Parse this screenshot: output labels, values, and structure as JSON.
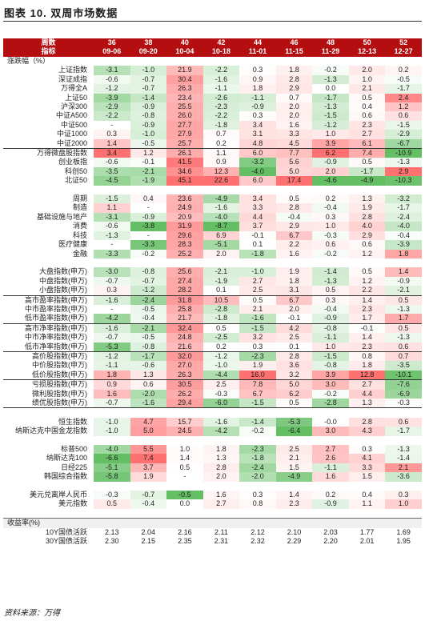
{
  "title": "图表 10. 双周市场数据",
  "source": "资料来源：万得",
  "header": {
    "row1_label": "周数",
    "row2_label": "指标",
    "weeks": [
      "36",
      "38",
      "40",
      "42",
      "44",
      "46",
      "48",
      "50",
      "52"
    ],
    "dates": [
      "09-06",
      "09-20",
      "10-04",
      "10-18",
      "11-01",
      "11-15",
      "11-29",
      "12-13",
      "12-27"
    ]
  },
  "colors": {
    "pos_max": "#f08080",
    "neg_max": "#5dbb63",
    "header_bg": "#b40e10"
  },
  "rows": [
    {
      "label": "涨跌幅（%）",
      "type": "section"
    },
    {
      "label": "上证指数",
      "vals": [
        "-3.1",
        "-1.0",
        "21.9",
        "-2.2",
        "0.3",
        "1.8",
        "-0.2",
        "2.0",
        "0.2"
      ]
    },
    {
      "label": "深证成指",
      "vals": [
        "-0.6",
        "-0.7",
        "30.4",
        "-1.6",
        "0.9",
        "2.8",
        "-1.3",
        "1.0",
        "-0.5"
      ]
    },
    {
      "label": "万得全A",
      "vals": [
        "-1.2",
        "-0.7",
        "26.3",
        "-1.1",
        "1.8",
        "2.9",
        "0.0",
        "2.1",
        "-1.7"
      ]
    },
    {
      "label": "上证50",
      "vals": [
        "-3.9",
        "-1.4",
        "23.4",
        "-2.6",
        "-1.1",
        "0.7",
        "-1.7",
        "0.5",
        "2.4"
      ]
    },
    {
      "label": "沪深300",
      "vals": [
        "-2.9",
        "-0.9",
        "25.5",
        "-2.3",
        "-0.9",
        "2.0",
        "-1.3",
        "0.4",
        "1.2"
      ]
    },
    {
      "label": "中证A500",
      "vals": [
        "-2.2",
        "-0.8",
        "26.0",
        "-2.2",
        "0.3",
        "2.0",
        "-1.5",
        "0.6",
        "0.6"
      ]
    },
    {
      "label": "中证500",
      "vals": [
        "-",
        "-0.9",
        "27.7",
        "-1.8",
        "3.4",
        "1.6",
        "-1.2",
        "2.3",
        "-1.5"
      ]
    },
    {
      "label": "中证1000",
      "vals": [
        "0.3",
        "-1.0",
        "27.9",
        "0.7",
        "3.1",
        "3.3",
        "1.0",
        "2.7",
        "-2.9"
      ]
    },
    {
      "label": "中证2000",
      "vals": [
        "1.4",
        "-0.5",
        "25.7",
        "0.2",
        "4.8",
        "4.5",
        "3.9",
        "6.1",
        "-6.7"
      ]
    },
    {
      "label": "万得微盘股指数",
      "vals": [
        "3.4",
        "1.2",
        "26.1",
        "1.1",
        "6.0",
        "7.7",
        "6.2",
        "7.4",
        "-10.9"
      ],
      "topline": true
    },
    {
      "label": "创业板指",
      "vals": [
        "-0.6",
        "-0.1",
        "41.5",
        "0.9",
        "-3.2",
        "5.6",
        "-0.9",
        "0.5",
        "-1.3"
      ]
    },
    {
      "label": "科创50",
      "vals": [
        "-3.5",
        "-2.1",
        "34.6",
        "12.3",
        "-4.0",
        "5.0",
        "2.0",
        "-1.7",
        "2.9"
      ]
    },
    {
      "label": "北证50",
      "vals": [
        "-4.5",
        "-1.9",
        "45.1",
        "22.6",
        "6.0",
        "17.4",
        "-4.6",
        "-4.9",
        "-10.3"
      ]
    },
    {
      "type": "gap"
    },
    {
      "label": "周期",
      "vals": [
        "-1.5",
        "0.4",
        "23.6",
        "-4.9",
        "3.4",
        "0.5",
        "0.2",
        "1.3",
        "-3.2"
      ]
    },
    {
      "label": "制造",
      "vals": [
        "1.1",
        "-",
        "24.9",
        "-1.6",
        "3.3",
        "2.8",
        "-0.4",
        "1.9",
        "-1.7"
      ]
    },
    {
      "label": "基础设施与地产",
      "vals": [
        "-3.1",
        "-0.9",
        "20.9",
        "-4.0",
        "4.4",
        "-0.4",
        "0.3",
        "2.8",
        "-2.4"
      ]
    },
    {
      "label": "消费",
      "vals": [
        "-0.6",
        "-3.8",
        "31.9",
        "-8.7",
        "3.7",
        "2.9",
        "1.0",
        "4.0",
        "-4.0"
      ]
    },
    {
      "label": "科技",
      "vals": [
        "-1.3",
        "-",
        "29.6",
        "6.9",
        "-0.1",
        "6.7",
        "-0.3",
        "2.9",
        "-0.4"
      ]
    },
    {
      "label": "医疗健康",
      "vals": [
        "-",
        "-3.3",
        "28.3",
        "-5.1",
        "0.1",
        "2.2",
        "0.6",
        "0.6",
        "-3.9"
      ]
    },
    {
      "label": "金融",
      "vals": [
        "-3.3",
        "-0.2",
        "25.2",
        "2.0",
        "-1.8",
        "1.6",
        "-0.2",
        "1.2",
        "1.8"
      ]
    },
    {
      "type": "gap"
    },
    {
      "label": "大盘指数(申万)",
      "vals": [
        "-3.0",
        "-0.8",
        "25.6",
        "-2.1",
        "-1.0",
        "1.9",
        "-1.4",
        "0.5",
        "1.4"
      ]
    },
    {
      "label": "中盘指数(申万)",
      "vals": [
        "-0.7",
        "-0.7",
        "27.4",
        "-1.9",
        "2.7",
        "1.8",
        "-1.3",
        "1.2",
        "-0.9"
      ]
    },
    {
      "label": "小盘指数(申万)",
      "vals": [
        "0.3",
        "-1.2",
        "28.2",
        "0.1",
        "2.5",
        "3.1",
        "0.5",
        "2.2",
        "-2.1"
      ]
    },
    {
      "label": "高市盈率指数(申万)",
      "vals": [
        "-1.6",
        "-2.4",
        "31.8",
        "10.5",
        "0.5",
        "6.7",
        "0.3",
        "1.4",
        "0.5"
      ],
      "topline": true
    },
    {
      "label": "中市盈率指数(申万)",
      "vals": [
        "-",
        "-0.5",
        "25.8",
        "-2.8",
        "2.1",
        "2.0",
        "-0.4",
        "2.3",
        "-1.3"
      ]
    },
    {
      "label": "低市盈率指数(申万)",
      "vals": [
        "-4.2",
        "-0.4",
        "21.7",
        "-1.8",
        "-1.6",
        "-0.1",
        "-0.9",
        "1.7",
        "1.7"
      ]
    },
    {
      "label": "高市净率指数(申万)",
      "vals": [
        "-1.6",
        "-2.1",
        "32.4",
        "0.5",
        "-1.5",
        "4.2",
        "-0.8",
        "-0.1",
        "0.5"
      ],
      "topline": true
    },
    {
      "label": "中市净率指数(申万)",
      "vals": [
        "-0.7",
        "-0.5",
        "24.8",
        "-2.5",
        "3.2",
        "2.5",
        "-1.1",
        "1.4",
        "-1.3"
      ]
    },
    {
      "label": "低市净率指数(申万)",
      "vals": [
        "-5.3",
        "-0.8",
        "21.6",
        "0.2",
        "0.3",
        "0.1",
        "1.0",
        "2.3",
        "0.6"
      ]
    },
    {
      "label": "高价股指数(申万)",
      "vals": [
        "-1.2",
        "-1.7",
        "32.0",
        "-1.2",
        "-2.3",
        "2.8",
        "-1.5",
        "0.8",
        "0.7"
      ],
      "topline": true
    },
    {
      "label": "中价股指数(申万)",
      "vals": [
        "-1.1",
        "-0.6",
        "27.0",
        "-1.0",
        "1.9",
        "3.6",
        "-0.8",
        "1.8",
        "-3.5"
      ]
    },
    {
      "label": "低价股指数(申万)",
      "vals": [
        "1.8",
        "1.3",
        "26.3",
        "-4.4",
        "16.0",
        "3.2",
        "3.9",
        "12.8",
        "-10.1"
      ]
    },
    {
      "label": "亏损股指数(申万)",
      "vals": [
        "0.9",
        "0.6",
        "30.5",
        "2.5",
        "7.8",
        "5.0",
        "3.0",
        "2.7",
        "-7.6"
      ],
      "topline": true
    },
    {
      "label": "微利股指数(申万)",
      "vals": [
        "1.6",
        "-2.0",
        "26.2",
        "-0.3",
        "6.7",
        "6.2",
        "-0.2",
        "4.4",
        "-6.9"
      ]
    },
    {
      "label": "绩优股指数(申万)",
      "vals": [
        "-0.7",
        "-1.6",
        "29.4",
        "-6.0",
        "-1.5",
        "0.5",
        "-2.8",
        "1.3",
        "-0.3"
      ],
      "botline": true
    },
    {
      "type": "gap"
    },
    {
      "label": "恒生指数",
      "vals": [
        "-1.0",
        "4.7",
        "15.7",
        "-1.6",
        "-1.4",
        "-5.3",
        "-0.0",
        "2.8",
        "0.6"
      ]
    },
    {
      "label": "纳斯达克中国金龙指数",
      "vals": [
        "-1.0",
        "5.0",
        "24.5",
        "-4.2",
        "-0.2",
        "-6.4",
        "3.0",
        "4.3",
        "-1.7"
      ]
    },
    {
      "type": "gap"
    },
    {
      "label": "标普500",
      "vals": [
        "-4.0",
        "5.5",
        "1.0",
        "1.8",
        "-2.3",
        "2.5",
        "2.7",
        "0.3",
        "-1.3"
      ]
    },
    {
      "label": "纳斯达克100",
      "vals": [
        "-6.6",
        "7.4",
        "1.4",
        "1.3",
        "-1.8",
        "2.1",
        "2.6",
        "4.1",
        "-1.4"
      ]
    },
    {
      "label": "日经225",
      "vals": [
        "-5.1",
        "3.7",
        "0.5",
        "2.8",
        "-2.4",
        "1.5",
        "-1.1",
        "3.3",
        "2.1"
      ]
    },
    {
      "label": "韩国综合指数",
      "vals": [
        "-5.8",
        "1.9",
        "-",
        "2.0",
        "-2.0",
        "-4.9",
        "1.6",
        "1.5",
        "-3.6"
      ]
    },
    {
      "type": "gap"
    },
    {
      "label": "美元兑离岸人民币",
      "vals": [
        "-0.3",
        "-0.7",
        "-0.5",
        "1.6",
        "0.3",
        "1.4",
        "0.2",
        "0.4",
        "0.3"
      ]
    },
    {
      "label": "美元指数",
      "vals": [
        "0.5",
        "-0.4",
        "0.0",
        "2.7",
        "0.8",
        "2.3",
        "-0.9",
        "1.1",
        "1.0"
      ]
    },
    {
      "type": "gap"
    },
    {
      "label": "收益率(%)",
      "type": "yield-section"
    },
    {
      "label": "10Y国债活跃",
      "vals": [
        "2.13",
        "2.04",
        "2.16",
        "2.11",
        "2.12",
        "2.10",
        "2.03",
        "1.77",
        "1.69"
      ],
      "nocolor": true
    },
    {
      "label": "30Y国债活跃",
      "vals": [
        "2.30",
        "2.15",
        "2.35",
        "2.31",
        "2.32",
        "2.29",
        "2.20",
        "2.01",
        "1.95"
      ],
      "nocolor": true
    }
  ]
}
